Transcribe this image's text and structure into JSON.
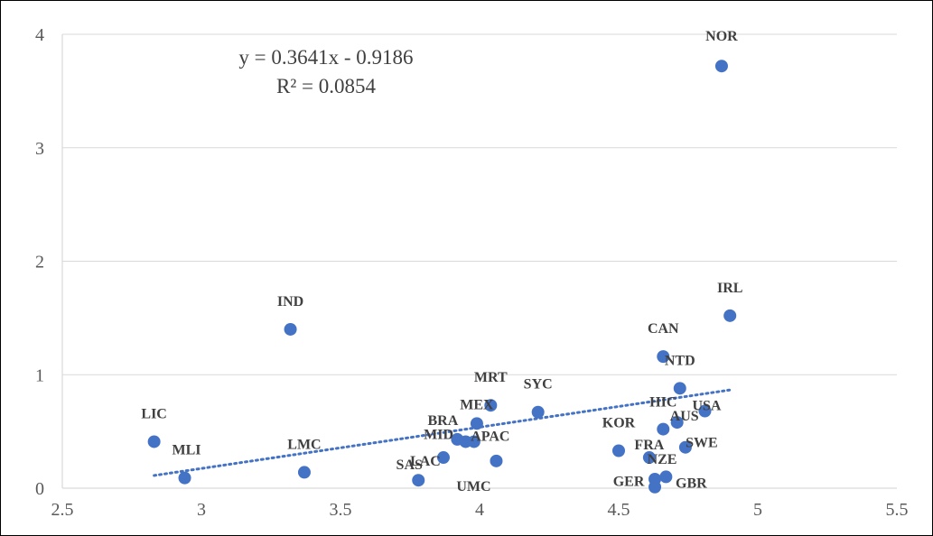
{
  "chart_data": {
    "type": "scatter",
    "xlim": [
      2.5,
      5.5
    ],
    "ylim": [
      0,
      4
    ],
    "x_ticks": [
      2.5,
      3,
      3.5,
      4,
      4.5,
      5,
      5.5
    ],
    "x_tick_labels": [
      "2.5",
      "3",
      "3.5",
      "4",
      "4.5",
      "5",
      "5.5"
    ],
    "y_ticks": [
      0,
      1,
      2,
      3,
      4
    ],
    "y_tick_labels": [
      "0",
      "1",
      "2",
      "3",
      "4"
    ],
    "grid": "horizontal",
    "point_color": "#4472C4",
    "trendline": {
      "type": "linear",
      "slope": 0.3641,
      "intercept": -0.9186,
      "x_range": [
        2.83,
        4.9
      ],
      "equation": "y = 0.3641x - 0.9186",
      "r_squared": "R² = 0.0854",
      "style": "dotted",
      "color": "#4472C4"
    },
    "points": [
      {
        "label": "NOR",
        "x": 4.87,
        "y": 3.72
      },
      {
        "label": "IRL",
        "x": 4.9,
        "y": 1.52
      },
      {
        "label": "IND",
        "x": 3.32,
        "y": 1.4
      },
      {
        "label": "CAN",
        "x": 4.66,
        "y": 1.16
      },
      {
        "label": "NTD",
        "x": 4.72,
        "y": 0.88
      },
      {
        "label": "USA",
        "x": 4.81,
        "y": 0.68
      },
      {
        "label": "MRT",
        "x": 4.04,
        "y": 0.73
      },
      {
        "label": "SYC",
        "x": 4.21,
        "y": 0.67
      },
      {
        "label": "MEX",
        "x": 3.99,
        "y": 0.57
      },
      {
        "label": "BRA",
        "x": 3.92,
        "y": 0.43
      },
      {
        "label": "MID",
        "x": 3.95,
        "y": 0.41
      },
      {
        "label": "APAC",
        "x": 3.98,
        "y": 0.41
      },
      {
        "label": "LAC",
        "x": 3.87,
        "y": 0.27
      },
      {
        "label": "UMC",
        "x": 4.06,
        "y": 0.24
      },
      {
        "label": "SAS",
        "x": 3.78,
        "y": 0.07
      },
      {
        "label": "LIC",
        "x": 2.83,
        "y": 0.41
      },
      {
        "label": "MLI",
        "x": 2.94,
        "y": 0.09
      },
      {
        "label": "LMC",
        "x": 3.37,
        "y": 0.14
      },
      {
        "label": "KOR",
        "x": 4.5,
        "y": 0.33
      },
      {
        "label": "HIC",
        "x": 4.66,
        "y": 0.52
      },
      {
        "label": "FRA",
        "x": 4.61,
        "y": 0.27
      },
      {
        "label": "AUS",
        "x": 4.71,
        "y": 0.58
      },
      {
        "label": "SWE",
        "x": 4.74,
        "y": 0.36
      },
      {
        "label": "NZE",
        "x": 4.63,
        "y": 0.08
      },
      {
        "label": "GER",
        "x": 4.63,
        "y": 0.01
      },
      {
        "label": "GBR",
        "x": 4.67,
        "y": 0.1
      }
    ]
  }
}
